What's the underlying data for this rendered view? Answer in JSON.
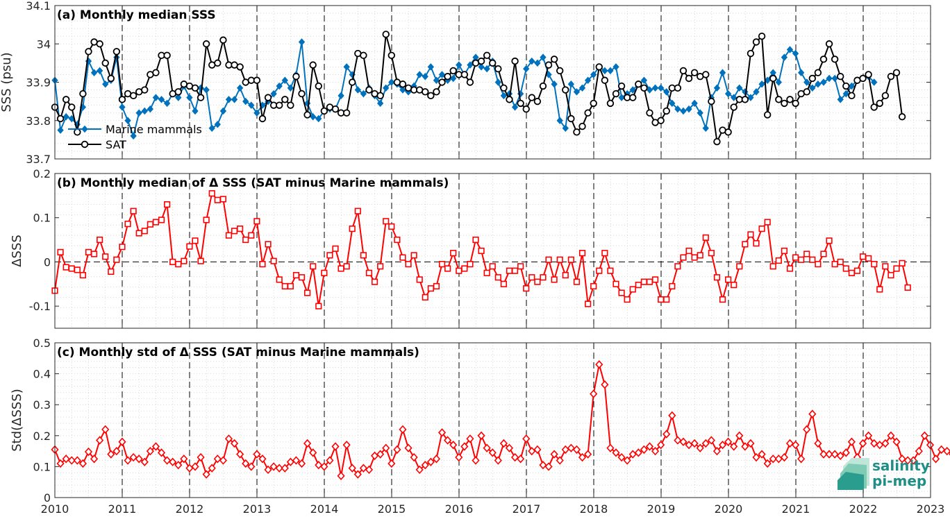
{
  "chart_data": [
    {
      "type": "line",
      "title": "(a) Monthly median SSS",
      "ylabel": "SSS (psu)",
      "xlim": [
        2010,
        2023
      ],
      "ylim": [
        33.7,
        34.1
      ],
      "yticks": [
        "33.7",
        "33.8",
        "33.9",
        "34",
        "34.1"
      ],
      "grid": "dotted minor grid, dashed vertical lines at each year",
      "legend_placement": "lower-left",
      "series": [
        {
          "name": "Marine mammals",
          "color": "#0072bd",
          "marker": "filled-diamond",
          "x_start": 2010.0,
          "x_step": 0.0833,
          "values": [
            33.905,
            33.775,
            33.81,
            33.805,
            33.79,
            33.835,
            33.955,
            33.925,
            33.93,
            33.895,
            33.905,
            33.965,
            33.835,
            33.8,
            33.76,
            33.82,
            33.825,
            33.83,
            33.86,
            33.855,
            33.845,
            33.87,
            33.86,
            33.89,
            33.86,
            33.825,
            33.885,
            33.88,
            33.78,
            33.79,
            33.825,
            33.855,
            33.855,
            33.885,
            33.85,
            33.84,
            33.82,
            33.84,
            33.85,
            33.87,
            33.89,
            33.905,
            33.885,
            33.92,
            34.005,
            33.845,
            33.81,
            33.805,
            33.825,
            33.83,
            33.83,
            33.865,
            33.94,
            33.92,
            33.88,
            33.87,
            33.885,
            33.865,
            33.845,
            33.885,
            33.9,
            33.895,
            33.88,
            33.875,
            33.89,
            33.92,
            33.915,
            33.94,
            33.905,
            33.92,
            33.905,
            33.91,
            33.945,
            33.92,
            33.945,
            33.965,
            33.94,
            33.935,
            33.955,
            33.9,
            33.865,
            33.87,
            33.835,
            33.87,
            33.935,
            33.955,
            33.95,
            33.965,
            33.92,
            33.895,
            33.8,
            33.78,
            33.895,
            33.875,
            33.885,
            33.905,
            33.92,
            33.94,
            33.93,
            33.93,
            33.94,
            33.86,
            33.87,
            33.88,
            33.895,
            33.905,
            33.88,
            33.885,
            33.885,
            33.875,
            33.845,
            33.83,
            33.825,
            33.83,
            33.845,
            33.82,
            33.78,
            33.86,
            33.885,
            33.925,
            33.87,
            33.86,
            33.885,
            33.875,
            33.86,
            33.875,
            33.895,
            33.905,
            33.925,
            33.9,
            33.965,
            33.985,
            33.975,
            33.925,
            33.9,
            33.885,
            33.895,
            33.9,
            33.91,
            33.91,
            33.855,
            33.87,
            33.89,
            33.905,
            33.91,
            33.915,
            33.9
          ]
        },
        {
          "name": "SAT",
          "color": "#000000",
          "marker": "open-circle",
          "x_start": 2010.0,
          "x_step": 0.0833,
          "values": [
            33.835,
            33.805,
            33.855,
            33.835,
            33.77,
            33.87,
            33.98,
            34.005,
            34.0,
            33.95,
            33.91,
            33.98,
            33.855,
            33.87,
            33.865,
            33.875,
            33.88,
            33.92,
            33.925,
            33.97,
            33.97,
            33.87,
            33.875,
            33.895,
            33.89,
            33.885,
            33.86,
            34.0,
            33.945,
            33.95,
            34.01,
            33.945,
            33.945,
            33.94,
            33.9,
            33.905,
            33.905,
            33.805,
            33.86,
            33.84,
            33.84,
            33.855,
            33.84,
            33.915,
            33.87,
            33.815,
            33.945,
            33.89,
            33.825,
            33.835,
            33.83,
            33.82,
            33.82,
            33.9,
            33.975,
            33.97,
            33.88,
            33.87,
            33.865,
            34.025,
            33.97,
            33.9,
            33.895,
            33.885,
            33.88,
            33.88,
            33.875,
            33.865,
            33.875,
            33.9,
            33.915,
            33.93,
            33.92,
            33.92,
            33.9,
            33.95,
            33.955,
            33.97,
            33.95,
            33.935,
            33.885,
            33.855,
            33.955,
            33.845,
            33.83,
            33.86,
            33.85,
            33.89,
            33.945,
            33.96,
            33.93,
            33.88,
            33.805,
            33.77,
            33.785,
            33.82,
            33.845,
            33.94,
            33.905,
            33.845,
            33.87,
            33.89,
            33.86,
            33.86,
            33.895,
            33.885,
            33.82,
            33.795,
            33.8,
            33.825,
            33.885,
            33.885,
            33.93,
            33.91,
            33.925,
            33.915,
            33.92,
            33.85,
            33.745,
            33.775,
            33.77,
            33.835,
            33.855,
            33.855,
            33.975,
            34.005,
            34.02,
            33.815,
            33.91,
            33.855,
            33.845,
            33.855,
            33.845,
            33.87,
            33.875,
            33.91,
            33.925,
            33.96,
            34.0,
            33.96,
            33.915,
            33.89,
            33.865,
            33.905,
            33.91,
            33.92,
            33.835,
            33.845,
            33.865,
            33.915,
            33.925,
            33.81
          ]
        }
      ]
    },
    {
      "type": "line",
      "title": "(b) Monthly median of Δ SSS (SAT minus Marine mammals)",
      "ylabel": "ΔSSS",
      "xlim": [
        2010,
        2023
      ],
      "ylim": [
        -0.15,
        0.2
      ],
      "yticks": [
        "-0.1",
        "0",
        "0.1",
        "0.2"
      ],
      "reference_line": 0,
      "series": [
        {
          "name": "",
          "color": "#ff0000",
          "marker": "open-square",
          "x_start": 2010.0,
          "x_step": 0.0833,
          "values": [
            -0.065,
            0.022,
            -0.012,
            -0.015,
            -0.018,
            -0.03,
            0.022,
            0.018,
            0.05,
            0.012,
            -0.022,
            0.005,
            0.034,
            0.086,
            0.115,
            0.065,
            0.07,
            0.085,
            0.09,
            0.095,
            0.13,
            0.0,
            -0.005,
            0.002,
            0.035,
            0.048,
            0.002,
            0.095,
            0.155,
            0.14,
            0.142,
            0.06,
            0.07,
            0.075,
            0.05,
            0.06,
            0.092,
            -0.005,
            0.04,
            0.002,
            -0.04,
            -0.055,
            -0.055,
            -0.03,
            -0.035,
            -0.07,
            -0.01,
            -0.1,
            -0.025,
            0.015,
            0.03,
            -0.015,
            -0.01,
            0.075,
            0.115,
            0.015,
            -0.025,
            -0.045,
            -0.01,
            0.092,
            0.08,
            0.05,
            0.01,
            -0.005,
            0.015,
            -0.04,
            -0.08,
            -0.06,
            -0.055,
            -0.005,
            -0.015,
            0.02,
            -0.02,
            -0.015,
            -0.005,
            0.05,
            0.025,
            -0.025,
            -0.01,
            -0.035,
            -0.05,
            -0.02,
            -0.02,
            -0.01,
            -0.06,
            -0.035,
            -0.045,
            -0.035,
            0.005,
            -0.04,
            0.005,
            -0.03,
            0.005,
            -0.045,
            0.02,
            -0.095,
            -0.055,
            -0.02,
            0.02,
            -0.02,
            -0.05,
            -0.07,
            -0.085,
            -0.062,
            -0.052,
            -0.045,
            -0.045,
            -0.04,
            -0.085,
            -0.085,
            -0.055,
            -0.01,
            0.01,
            0.025,
            0.01,
            0.015,
            0.055,
            0.02,
            -0.035,
            -0.085,
            -0.04,
            -0.052,
            -0.01,
            0.04,
            0.062,
            0.042,
            0.075,
            0.09,
            -0.01,
            0.003,
            0.025,
            -0.015,
            0.01,
            0.005,
            0.018,
            0.005,
            -0.005,
            0.018,
            0.048,
            -0.005,
            0.0,
            -0.015,
            -0.025,
            -0.02,
            0.012,
            0.008,
            -0.005,
            -0.062,
            -0.01,
            -0.03,
            -0.015,
            -0.003,
            -0.058
          ]
        }
      ]
    },
    {
      "type": "line",
      "title": "(c) Monthly std of Δ SSS (SAT minus Marine mammals)",
      "ylabel": "Std(ΔSSS)",
      "xlabel": "",
      "xlim": [
        2010,
        2023
      ],
      "ylim": [
        0,
        0.5
      ],
      "yticks": [
        "0",
        "0.1",
        "0.2",
        "0.3",
        "0.4",
        "0.5"
      ],
      "xticks": [
        "2010",
        "2011",
        "2012",
        "2013",
        "2014",
        "2015",
        "2016",
        "2017",
        "2018",
        "2019",
        "2020",
        "2021",
        "2022",
        "2023"
      ],
      "series": [
        {
          "name": "",
          "color": "#ff0000",
          "marker": "open-diamond",
          "x_start": 2010.0,
          "x_step": 0.0833,
          "values": [
            0.155,
            0.11,
            0.125,
            0.12,
            0.12,
            0.11,
            0.148,
            0.125,
            0.185,
            0.22,
            0.14,
            0.15,
            0.18,
            0.12,
            0.13,
            0.125,
            0.115,
            0.15,
            0.165,
            0.145,
            0.12,
            0.115,
            0.105,
            0.125,
            0.095,
            0.1,
            0.13,
            0.075,
            0.095,
            0.125,
            0.12,
            0.19,
            0.175,
            0.14,
            0.11,
            0.1,
            0.14,
            0.125,
            0.09,
            0.1,
            0.095,
            0.095,
            0.115,
            0.12,
            0.11,
            0.175,
            0.145,
            0.105,
            0.1,
            0.12,
            0.165,
            0.07,
            0.17,
            0.095,
            0.075,
            0.095,
            0.09,
            0.135,
            0.14,
            0.16,
            0.11,
            0.155,
            0.22,
            0.16,
            0.13,
            0.09,
            0.105,
            0.115,
            0.125,
            0.21,
            0.185,
            0.17,
            0.13,
            0.165,
            0.19,
            0.12,
            0.2,
            0.16,
            0.145,
            0.12,
            0.175,
            0.16,
            0.13,
            0.125,
            0.19,
            0.15,
            0.155,
            0.105,
            0.1,
            0.14,
            0.12,
            0.155,
            0.16,
            0.155,
            0.13,
            0.14,
            0.335,
            0.43,
            0.365,
            0.16,
            0.145,
            0.13,
            0.12,
            0.14,
            0.145,
            0.155,
            0.165,
            0.15,
            0.17,
            0.205,
            0.265,
            0.185,
            0.18,
            0.17,
            0.175,
            0.16,
            0.175,
            0.185,
            0.15,
            0.17,
            0.18,
            0.165,
            0.2,
            0.165,
            0.175,
            0.13,
            0.14,
            0.11,
            0.125,
            0.125,
            0.13,
            0.175,
            0.17,
            0.125,
            0.22,
            0.27,
            0.175,
            0.14,
            0.14,
            0.14,
            0.135,
            0.145,
            0.18,
            0.13,
            0.175,
            0.2,
            0.175,
            0.17,
            0.175,
            0.2,
            0.18,
            0.125,
            0.12,
            0.12,
            0.15,
            0.2,
            0.17,
            0.125,
            0.155,
            0.15,
            0.14
          ]
        }
      ]
    }
  ],
  "logo": {
    "line1": "salinity",
    "line2": "pi-mep",
    "color": "#1f8f86"
  }
}
